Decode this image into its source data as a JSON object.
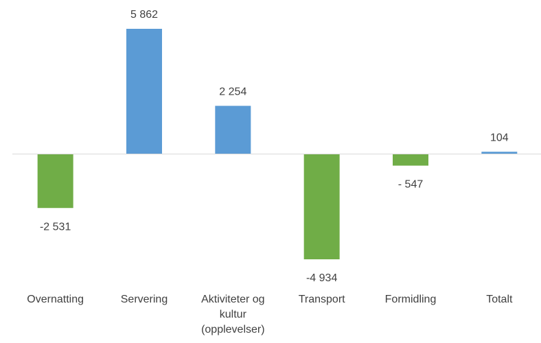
{
  "chart_data": {
    "type": "bar",
    "categories": [
      "Overnatting",
      "Servering",
      "Aktiviteter og kultur (opplevelser)",
      "Transport",
      "Formidling",
      "Totalt"
    ],
    "values": [
      -2531,
      5862,
      2254,
      -4934,
      -547,
      104
    ],
    "value_labels": [
      "-2 531",
      "5 862",
      "2 254",
      "-4 934",
      "- 547",
      "104"
    ],
    "positive_color": "#5b9bd5",
    "negative_color": "#70ad47"
  }
}
